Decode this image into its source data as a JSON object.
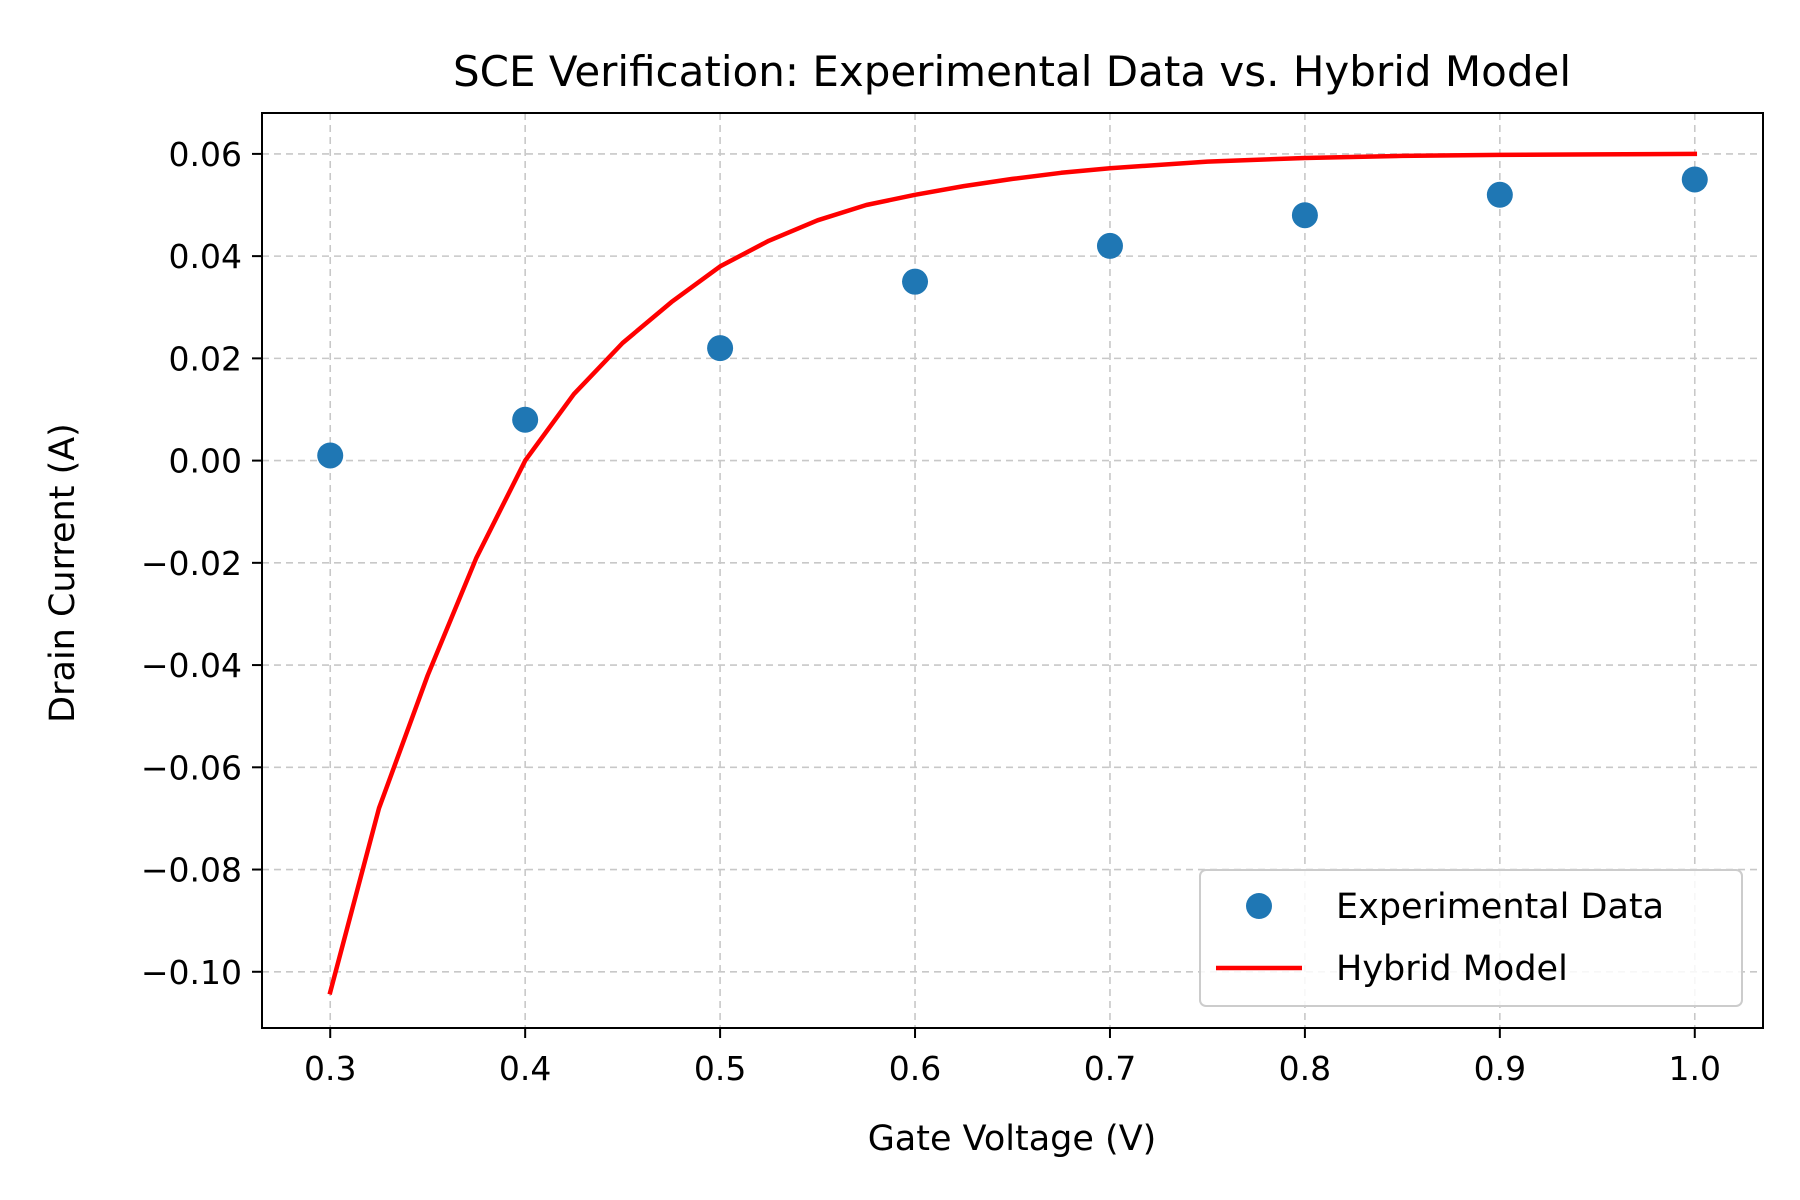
{
  "chart_data": {
    "type": "line",
    "title": "SCE Verification: Experimental Data vs. Hybrid Model",
    "xlabel": "Gate Voltage (V)",
    "ylabel": "Drain Current (A)",
    "xlim": [
      0.265,
      1.035
    ],
    "ylim": [
      -0.111,
      0.068
    ],
    "xticks": [
      0.3,
      0.4,
      0.5,
      0.6,
      0.7,
      0.8,
      0.9,
      1.0
    ],
    "xtick_labels": [
      "0.3",
      "0.4",
      "0.5",
      "0.6",
      "0.7",
      "0.8",
      "0.9",
      "1.0"
    ],
    "yticks": [
      0.06,
      0.04,
      0.02,
      0.0,
      -0.02,
      -0.04,
      -0.06,
      -0.08,
      -0.1
    ],
    "ytick_labels": [
      "0.06",
      "0.04",
      "0.02",
      "0.00",
      "−0.02",
      "−0.04",
      "−0.06",
      "−0.08",
      "−0.10"
    ],
    "grid": true,
    "legend_position": "bottom-right",
    "series": [
      {
        "name": "Experimental Data",
        "kind": "scatter",
        "color": "#1f77b4",
        "x": [
          0.3,
          0.4,
          0.5,
          0.6,
          0.7,
          0.8,
          0.9,
          1.0
        ],
        "y": [
          0.001,
          0.008,
          0.022,
          0.035,
          0.042,
          0.048,
          0.052,
          0.055
        ]
      },
      {
        "name": "Hybrid Model",
        "kind": "line",
        "color": "#ff0000",
        "x": [
          0.3,
          0.325,
          0.35,
          0.375,
          0.4,
          0.425,
          0.45,
          0.475,
          0.5,
          0.525,
          0.55,
          0.575,
          0.6,
          0.625,
          0.65,
          0.675,
          0.7,
          0.75,
          0.8,
          0.85,
          0.9,
          0.95,
          1.0
        ],
        "y": [
          -0.104,
          -0.068,
          -0.042,
          -0.019,
          0.0,
          0.013,
          0.023,
          0.031,
          0.038,
          0.043,
          0.047,
          0.05,
          0.052,
          0.0537,
          0.0551,
          0.0563,
          0.0572,
          0.0585,
          0.0592,
          0.0596,
          0.0598,
          0.0599,
          0.06
        ]
      }
    ]
  }
}
